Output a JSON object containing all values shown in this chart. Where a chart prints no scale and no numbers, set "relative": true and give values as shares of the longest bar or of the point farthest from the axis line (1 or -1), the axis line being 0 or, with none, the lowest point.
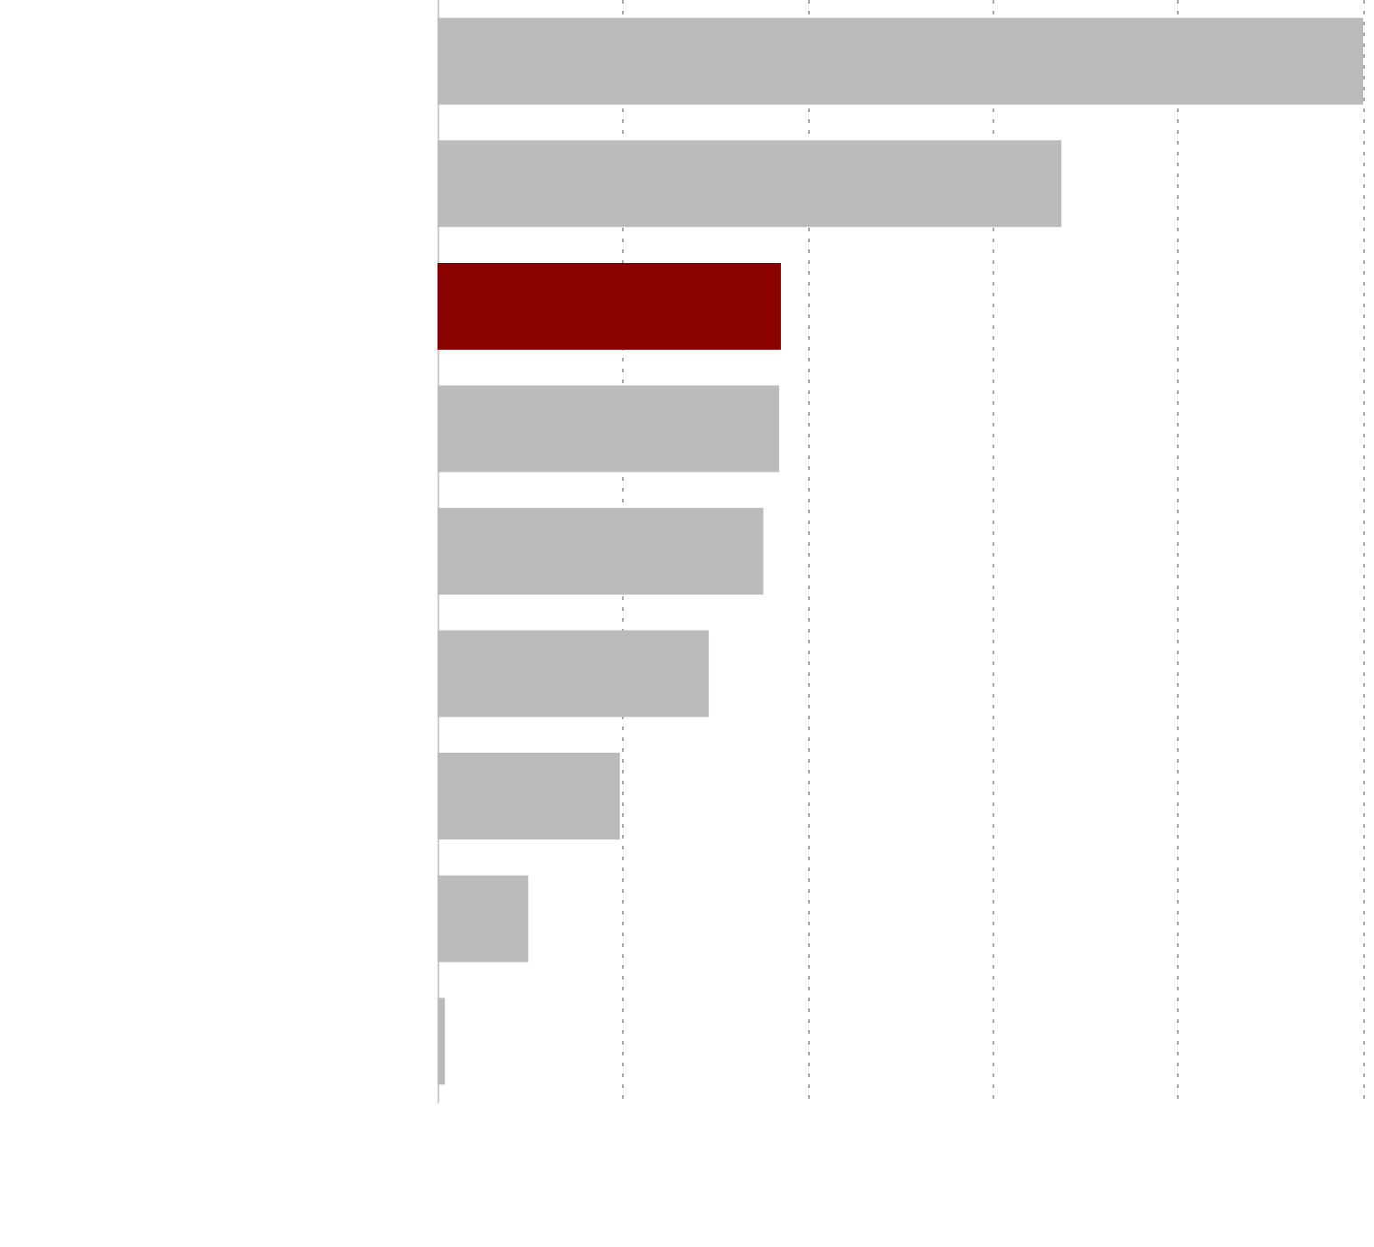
{
  "chart_data": {
    "type": "bar",
    "orientation": "horizontal",
    "relative": true,
    "grid": "x",
    "categories": [
      null,
      null,
      null,
      null,
      null,
      null,
      null,
      null,
      null
    ],
    "values": [
      1,
      0.674,
      0.371,
      0.369,
      0.352,
      0.293,
      0.197,
      0.098,
      0.008
    ],
    "colors": [
      "#bbbbbb",
      "#bbbbbb",
      "#8b0000",
      "#bbbbbb",
      "#bbbbbb",
      "#bbbbbb",
      "#bbbbbb",
      "#bbbbbb",
      "#bbbbbb"
    ]
  }
}
